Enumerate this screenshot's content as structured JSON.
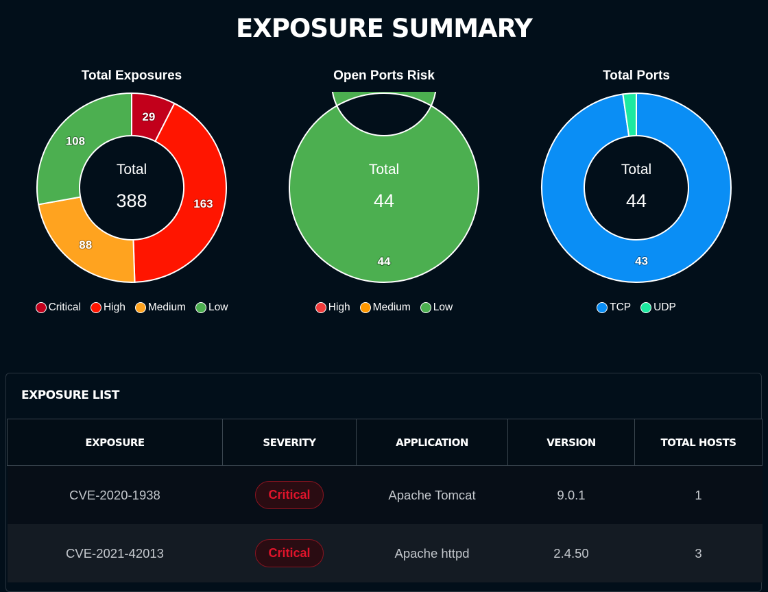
{
  "title": "EXPOSURE SUMMARY",
  "chart_data": [
    {
      "type": "pie",
      "title": "Total Exposures",
      "center_label": "Total",
      "center_value": "388",
      "categories": [
        "Critical",
        "High",
        "Medium",
        "Low"
      ],
      "values": [
        29,
        163,
        88,
        108
      ],
      "colors": [
        "#c2001b",
        "#ff1500",
        "#ffa31f",
        "#4caf50"
      ]
    },
    {
      "type": "pie",
      "title": "Open Ports Risk",
      "center_label": "Total",
      "center_value": "44",
      "categories": [
        "High",
        "Medium",
        "Low"
      ],
      "values": [
        0,
        0,
        44
      ],
      "colors": [
        "#f23b3b",
        "#ff9800",
        "#4caf50"
      ]
    },
    {
      "type": "pie",
      "title": "Total Ports",
      "center_label": "Total",
      "center_value": "44",
      "categories": [
        "TCP",
        "UDP"
      ],
      "values": [
        43,
        1
      ],
      "colors": [
        "#0a8ef5",
        "#1de9a0"
      ]
    }
  ],
  "exposure_list": {
    "title": "EXPOSURE LIST",
    "columns": [
      "EXPOSURE",
      "SEVERITY",
      "APPLICATION",
      "VERSION",
      "TOTAL HOSTS"
    ],
    "rows": [
      {
        "exposure": "CVE-2020-1938",
        "severity": "Critical",
        "application": "Apache Tomcat",
        "version": "9.0.1",
        "hosts": "1"
      },
      {
        "exposure": "CVE-2021-42013",
        "severity": "Critical",
        "application": "Apache httpd",
        "version": "2.4.50",
        "hosts": "3"
      }
    ]
  }
}
